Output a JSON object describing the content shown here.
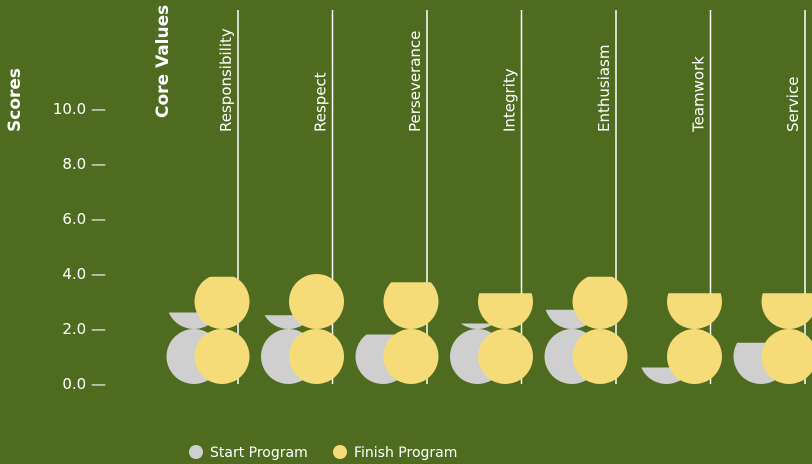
{
  "chart_data": {
    "type": "bar",
    "ylabel": "Scores",
    "xlabel": "Core Values",
    "ylim": [
      0,
      10
    ],
    "yticks": [
      "0.0 —",
      "2.0 —",
      "4.0 —",
      "6.0 —",
      "8.0 —",
      "10.0 —"
    ],
    "categories": [
      "Responsibility",
      "Respect",
      "Perseverance",
      "Integrity",
      "Enthusiasm",
      "Teamwork",
      "Service"
    ],
    "series": [
      {
        "name": "Start Program",
        "color": "#cfcfcf",
        "values": [
          2.6,
          2.5,
          1.8,
          2.2,
          2.7,
          0.6,
          1.5
        ]
      },
      {
        "name": "Finish Program",
        "color": "#f5dc79",
        "values": [
          3.9,
          4.0,
          3.7,
          3.3,
          3.9,
          3.3,
          3.3
        ]
      }
    ],
    "legend_position": "bottom"
  }
}
